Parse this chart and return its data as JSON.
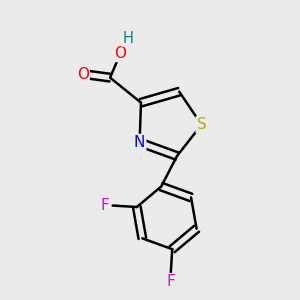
{
  "bg_color": "#ebebeb",
  "atom_colors": {
    "C": "#000000",
    "N": "#0000ff",
    "O": "#ff0000",
    "S": "#bbaa00",
    "F": "#ee00ee",
    "H": "#008888"
  },
  "bond_color": "#000000",
  "figsize": [
    3.0,
    3.0
  ],
  "dpi": 100
}
